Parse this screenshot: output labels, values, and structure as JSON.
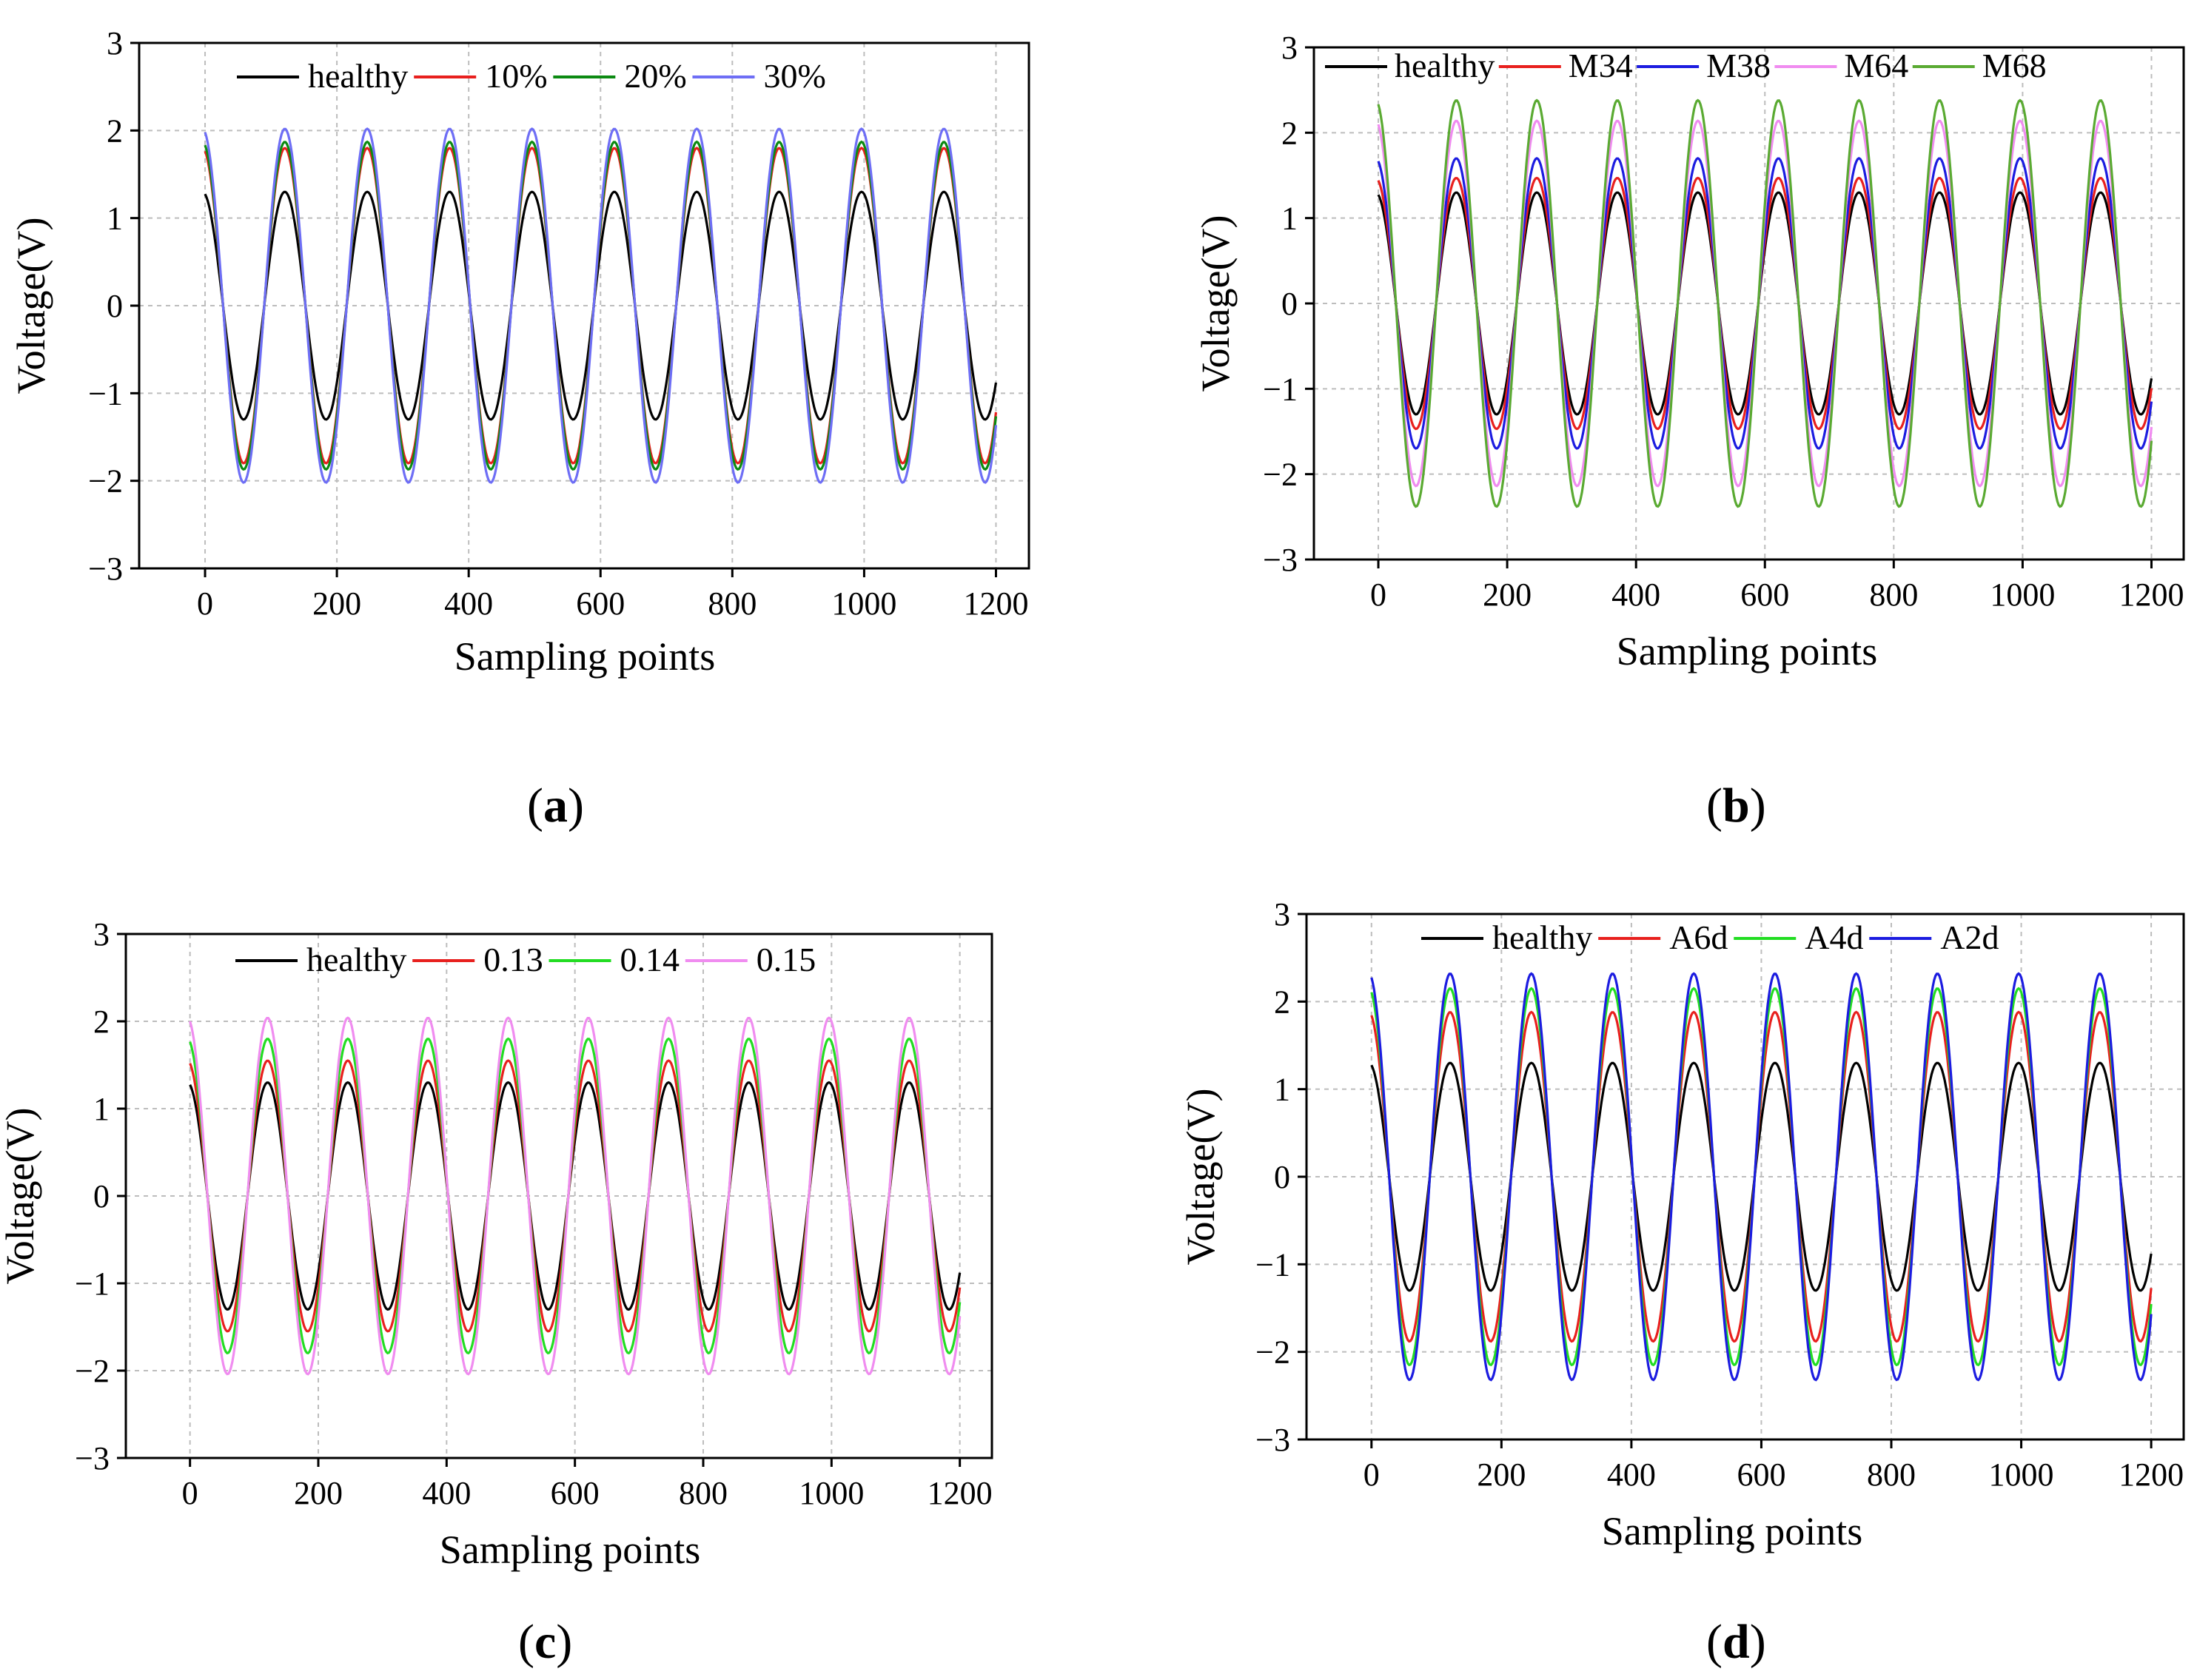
{
  "chart_data": [
    {
      "type": "line",
      "panel_label": "a",
      "xlabel": "Sampling points",
      "ylabel": "Voltage(V)",
      "xlim": [
        -100,
        1250
      ],
      "ylim": [
        -3,
        3
      ],
      "xticks": [
        0,
        200,
        400,
        600,
        800,
        1000,
        1200
      ],
      "xtick_labels": [
        "0",
        "200",
        "400",
        "600",
        "800",
        "1000",
        "1200"
      ],
      "yticks": [
        -3,
        -2,
        -1,
        0,
        1,
        2,
        3
      ],
      "ytick_labels": [
        "−3",
        "−2",
        "−1",
        "0",
        "1",
        "2",
        "3"
      ],
      "grid": true,
      "legend_position": "top",
      "x_range": [
        0,
        1200
      ],
      "period": 125,
      "phase": 0.2,
      "series": [
        {
          "name": "healthy",
          "amplitude": 1.3,
          "color": "#000000"
        },
        {
          "name": "10%",
          "amplitude": 1.8,
          "color": "#e8201e"
        },
        {
          "name": "20%",
          "amplitude": 1.87,
          "color": "#0c8a12"
        },
        {
          "name": "30%",
          "amplitude": 2.02,
          "color": "#6e6ef5"
        }
      ]
    },
    {
      "type": "line",
      "panel_label": "b",
      "xlabel": "Sampling points",
      "ylabel": "Voltage(V)",
      "xlim": [
        -100,
        1250
      ],
      "ylim": [
        -3,
        3
      ],
      "xticks": [
        0,
        200,
        400,
        600,
        800,
        1000,
        1200
      ],
      "xtick_labels": [
        "0",
        "200",
        "400",
        "600",
        "800",
        "1000",
        "1200"
      ],
      "yticks": [
        -3,
        -2,
        -1,
        0,
        1,
        2,
        3
      ],
      "ytick_labels": [
        "−3",
        "−2",
        "−1",
        "0",
        "1",
        "2",
        "3"
      ],
      "grid": true,
      "legend_position": "top",
      "x_range": [
        0,
        1200
      ],
      "period": 125,
      "phase": 0.2,
      "series": [
        {
          "name": "healthy",
          "amplitude": 1.3,
          "color": "#000000"
        },
        {
          "name": "M34",
          "amplitude": 1.47,
          "color": "#e8201e"
        },
        {
          "name": "M38",
          "amplitude": 1.7,
          "color": "#1c1ce0"
        },
        {
          "name": "M64",
          "amplitude": 2.14,
          "color": "#f08cf0"
        },
        {
          "name": "M68",
          "amplitude": 2.38,
          "color": "#5aaa32"
        }
      ]
    },
    {
      "type": "line",
      "panel_label": "c",
      "xlabel": "Sampling points",
      "ylabel": "Voltage(V)",
      "xlim": [
        -100,
        1250
      ],
      "ylim": [
        -3,
        3
      ],
      "xticks": [
        0,
        200,
        400,
        600,
        800,
        1000,
        1200
      ],
      "xtick_labels": [
        "0",
        "200",
        "400",
        "600",
        "800",
        "1000",
        "1200"
      ],
      "yticks": [
        -3,
        -2,
        -1,
        0,
        1,
        2,
        3
      ],
      "ytick_labels": [
        "−3",
        "−2",
        "−1",
        "0",
        "1",
        "2",
        "3"
      ],
      "grid": true,
      "legend_position": "top",
      "x_range": [
        0,
        1200
      ],
      "period": 125,
      "phase": 0.2,
      "series": [
        {
          "name": "healthy",
          "amplitude": 1.3,
          "color": "#000000"
        },
        {
          "name": "0.13",
          "amplitude": 1.55,
          "color": "#e8201e"
        },
        {
          "name": "0.14",
          "amplitude": 1.8,
          "color": "#22dd22"
        },
        {
          "name": "0.15",
          "amplitude": 2.04,
          "color": "#f08cf0"
        }
      ]
    },
    {
      "type": "line",
      "panel_label": "d",
      "xlabel": "Sampling points",
      "ylabel": "Voltage(V)",
      "xlim": [
        -100,
        1250
      ],
      "ylim": [
        -3,
        3
      ],
      "xticks": [
        0,
        200,
        400,
        600,
        800,
        1000,
        1200
      ],
      "xtick_labels": [
        "0",
        "200",
        "400",
        "600",
        "800",
        "1000",
        "1200"
      ],
      "yticks": [
        -3,
        -2,
        -1,
        0,
        1,
        2,
        3
      ],
      "ytick_labels": [
        "−3",
        "−2",
        "−1",
        "0",
        "1",
        "2",
        "3"
      ],
      "grid": true,
      "legend_position": "top",
      "x_range": [
        0,
        1200
      ],
      "period": 125,
      "phase": 0.2,
      "series": [
        {
          "name": "healthy",
          "amplitude": 1.3,
          "color": "#000000"
        },
        {
          "name": "A6d",
          "amplitude": 1.88,
          "color": "#e8201e"
        },
        {
          "name": "A4d",
          "amplitude": 2.15,
          "color": "#22dd22"
        },
        {
          "name": "A2d",
          "amplitude": 2.32,
          "color": "#1c1ce0"
        }
      ]
    }
  ]
}
